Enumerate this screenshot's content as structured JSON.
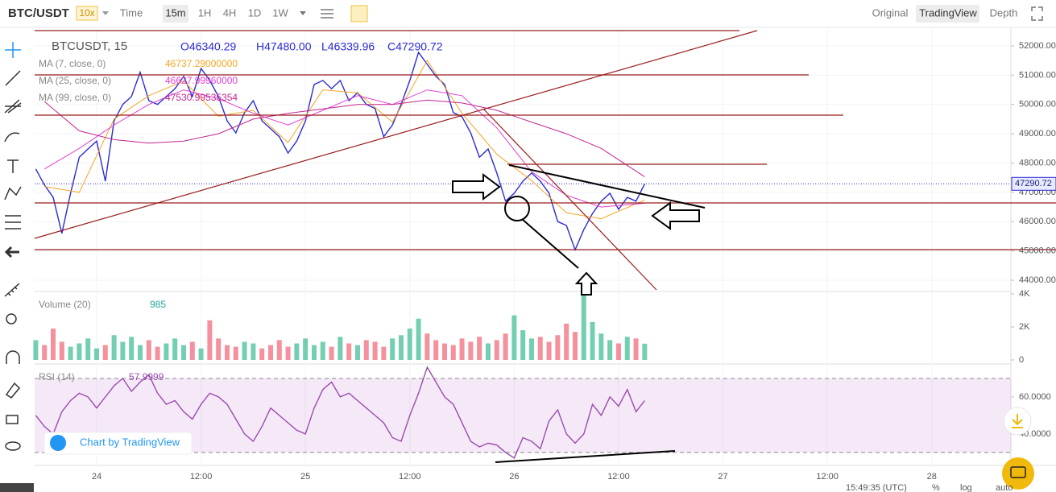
{
  "toolbar": {
    "symbol": "BTC/USDT",
    "leverage": "10x",
    "intervals": [
      "Time",
      "15m",
      "1H",
      "4H",
      "1D",
      "1W"
    ],
    "views": [
      "Original",
      "TradingView",
      "Depth"
    ]
  },
  "footer": {
    "brand": "Chart by TradingView",
    "clock": "15:49:35 (UTC)",
    "scale_options": [
      "%",
      "log",
      "auto"
    ]
  },
  "chart_data": [
    {
      "type": "line",
      "ohlc": [
        "O46340.29",
        "H47480.00",
        "L46339.96",
        "C47290.72"
      ],
      "xlim": [
        -7.13,
        105.1
      ],
      "ylim": [
        43615,
        52522
      ],
      "yticks": [
        {
          "value": 44000,
          "label": "44000.00"
        },
        {
          "value": 45000,
          "label": "45000.00"
        },
        {
          "value": 46000,
          "label": "46000.00"
        },
        {
          "value": 47000,
          "label": "47000.00"
        },
        {
          "value": 48000,
          "label": "48000.00"
        },
        {
          "value": 49000,
          "label": "49000.00"
        },
        {
          "value": 50000,
          "label": "50000.00"
        },
        {
          "value": 51000,
          "label": "51000.00"
        },
        {
          "value": 52000,
          "label": "52000.00"
        }
      ],
      "grid": true,
      "series": [
        {
          "name": "BTCUSDT, 15",
          "color": "#2b2bd6",
          "x": [
            -7,
            -6,
            -5,
            -4,
            -3,
            -2,
            -1,
            0,
            1,
            2,
            3,
            4,
            5,
            6,
            7,
            8,
            9,
            10,
            11,
            12,
            13,
            14,
            15,
            16,
            17,
            18,
            19,
            20,
            21,
            22,
            23,
            24,
            25,
            26,
            27,
            28,
            29,
            30,
            31,
            32,
            33,
            34,
            35,
            36,
            37,
            38,
            39,
            40,
            41,
            42,
            43,
            44,
            45,
            46,
            47,
            48,
            49,
            50,
            51,
            52,
            53,
            54,
            55,
            56,
            57,
            58,
            59,
            60,
            61,
            62,
            63
          ],
          "values": [
            47800,
            47250,
            46830,
            45600,
            46970,
            48200,
            48480,
            48750,
            47380,
            49440,
            50000,
            50270,
            51100,
            50130,
            50000,
            50270,
            50540,
            50960,
            50270,
            51230,
            50820,
            50270,
            49440,
            49030,
            49720,
            50130,
            49440,
            49170,
            48900,
            48340,
            48750,
            49440,
            50680,
            50820,
            50540,
            50820,
            50130,
            50400,
            50000,
            49860,
            48900,
            49300,
            50000,
            50820,
            51780,
            51370,
            50960,
            50680,
            49720,
            49580,
            49030,
            48200,
            48480,
            47660,
            46700,
            46970,
            47380,
            47660,
            47380,
            46970,
            46000,
            45870,
            45040,
            45730,
            46280,
            46700,
            46970,
            46420,
            46830,
            46700,
            47290.72
          ]
        },
        {
          "name": "MA (7, close, 0)",
          "color": "#f5a623",
          "last_label": "46737.29000000",
          "x": [
            -6,
            -2,
            2,
            6,
            10,
            14,
            18,
            22,
            26,
            30,
            34,
            38,
            42,
            46,
            50,
            54,
            58,
            63
          ],
          "values": [
            47200,
            47000,
            49500,
            50300,
            50800,
            49600,
            49800,
            48700,
            50500,
            50400,
            49400,
            51500,
            49700,
            48300,
            47400,
            46300,
            46100,
            46737.29
          ]
        },
        {
          "name": "MA (25, close, 0)",
          "color": "#e33fd0",
          "last_label": "46627.99960000",
          "x": [
            -6,
            -2,
            2,
            6,
            10,
            14,
            18,
            22,
            26,
            30,
            34,
            38,
            42,
            46,
            50,
            54,
            58,
            63
          ],
          "values": [
            47800,
            48500,
            49300,
            50000,
            50500,
            50200,
            49700,
            49300,
            49800,
            50300,
            50000,
            50500,
            50300,
            49200,
            47700,
            46900,
            46500,
            46627.9996
          ]
        },
        {
          "name": "MA (99, close, 0)",
          "color": "#c2268f",
          "last_label": "47530.99535354",
          "x": [
            -6,
            -2,
            2,
            6,
            10,
            14,
            18,
            22,
            26,
            30,
            34,
            38,
            42,
            46,
            50,
            54,
            58,
            63
          ],
          "values": [
            50100,
            49100,
            48800,
            48680,
            48750,
            49000,
            49500,
            49700,
            49850,
            50000,
            50000,
            50150,
            50050,
            49800,
            49400,
            49000,
            48500,
            47530.99535354
          ]
        }
      ]
    },
    {
      "type": "bar",
      "title": "Volume (20)",
      "up_color": "#5cc6a3",
      "down_color": "#f37d8c",
      "xlim": [
        -7.13,
        105.1
      ],
      "ylim": [
        0,
        4000
      ],
      "yticks": [
        0,
        {
          "value": 2000,
          "label": "2K"
        },
        {
          "value": 4000,
          "label": "4K"
        }
      ],
      "x": [
        -7,
        -6,
        -5,
        -4,
        -3,
        -2,
        -1,
        0,
        1,
        2,
        3,
        4,
        5,
        6,
        7,
        8,
        9,
        10,
        11,
        12,
        13,
        14,
        15,
        16,
        17,
        18,
        19,
        20,
        21,
        22,
        23,
        24,
        25,
        26,
        27,
        28,
        29,
        30,
        31,
        32,
        33,
        34,
        35,
        36,
        37,
        38,
        39,
        40,
        41,
        42,
        43,
        44,
        45,
        46,
        47,
        48,
        49,
        50,
        51,
        52,
        53,
        54,
        55,
        56,
        57,
        58,
        59,
        60,
        61,
        62,
        63
      ],
      "values": [
        1200,
        900,
        1900,
        1100,
        800,
        1000,
        1300,
        700,
        900,
        1500,
        1100,
        1400,
        900,
        1200,
        800,
        1000,
        1300,
        900,
        1100,
        700,
        2400,
        1300,
        900,
        800,
        1100,
        1000,
        700,
        900,
        1200,
        800,
        1000,
        1300,
        900,
        1100,
        800,
        1400,
        1000,
        900,
        1200,
        1100,
        800,
        1300,
        1500,
        1900,
        2500,
        1600,
        1200,
        1000,
        900,
        1300,
        1100,
        1400,
        1000,
        1200,
        1600,
        2700,
        1800,
        1300,
        1400,
        1100,
        1500,
        2200,
        1700,
        3900,
        2300,
        1600,
        1200,
        1000,
        1400,
        1300,
        985
      ]
    },
    {
      "type": "line",
      "title": "RSI (14)",
      "xlim": [
        -7.13,
        105.1
      ],
      "ylim": [
        24.3,
        76.5
      ],
      "yticks": [
        {
          "value": 40,
          "label": "40.0000"
        },
        {
          "value": 60,
          "label": "60.0000"
        }
      ],
      "bands": [
        30,
        70
      ],
      "xticks": [
        {
          "value": 0,
          "label": "24"
        },
        {
          "value": 12,
          "label": "12:00"
        },
        {
          "value": 24,
          "label": "25"
        },
        {
          "value": 36,
          "label": "12:00"
        },
        {
          "value": 48,
          "label": "26"
        },
        {
          "value": 60,
          "label": "12:00"
        },
        {
          "value": 72,
          "label": "27"
        },
        {
          "value": 84,
          "label": "12:00"
        },
        {
          "value": 96,
          "label": "28"
        }
      ],
      "series": [
        {
          "name": "RSI (14)",
          "color": "#9b4bb0",
          "x": [
            -7,
            -6,
            -5,
            -4,
            -3,
            -2,
            -1,
            0,
            1,
            2,
            3,
            4,
            5,
            6,
            7,
            8,
            9,
            10,
            11,
            12,
            13,
            14,
            15,
            16,
            17,
            18,
            19,
            20,
            21,
            22,
            23,
            24,
            25,
            26,
            27,
            28,
            29,
            30,
            31,
            32,
            33,
            34,
            35,
            36,
            37,
            38,
            39,
            40,
            41,
            42,
            43,
            44,
            45,
            46,
            47,
            48,
            49,
            50,
            51,
            52,
            53,
            54,
            55,
            56,
            57,
            58,
            59,
            60,
            61,
            62,
            63
          ],
          "values": [
            50,
            44,
            40,
            52,
            58,
            62,
            60,
            54,
            60,
            66,
            70,
            63,
            68,
            72,
            62,
            56,
            58,
            52,
            48,
            56,
            62,
            60,
            56,
            48,
            40,
            36,
            44,
            54,
            50,
            46,
            42,
            40,
            54,
            64,
            68,
            60,
            62,
            58,
            54,
            50,
            46,
            38,
            36,
            50,
            62,
            76,
            68,
            60,
            56,
            46,
            36,
            33,
            35,
            34,
            30,
            27,
            38,
            36,
            32,
            47,
            53,
            40,
            35,
            40,
            56,
            50,
            60,
            55,
            64,
            52,
            57.9999
          ]
        }
      ]
    }
  ]
}
